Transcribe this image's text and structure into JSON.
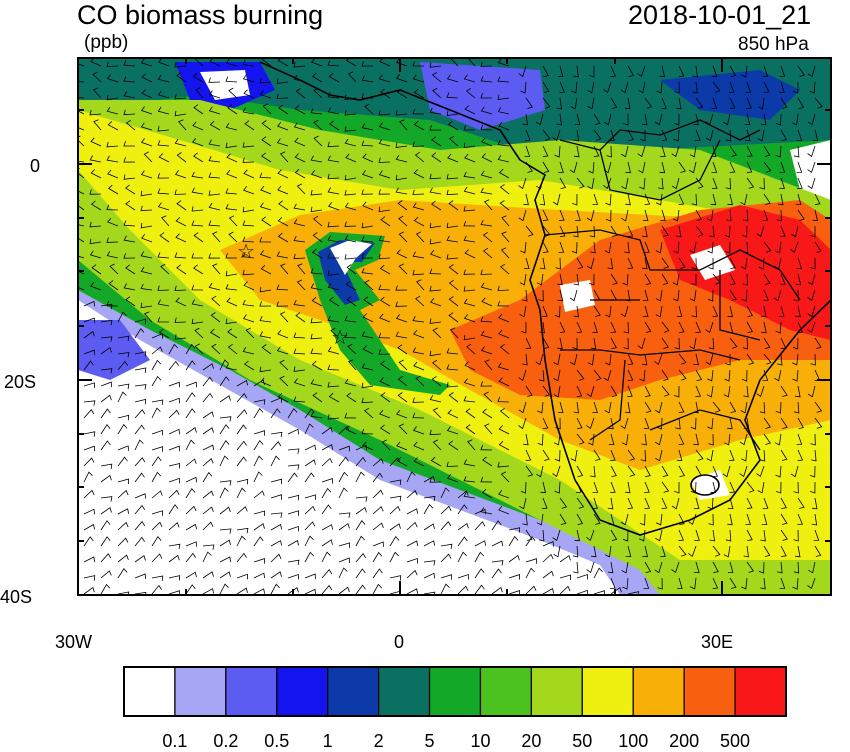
{
  "header": {
    "title": "CO biomass burning",
    "units": "(ppb)",
    "datetime": "2018-10-01_21",
    "level": "850 hPa"
  },
  "axes": {
    "lat_labels": [
      "0",
      "20S",
      "40S"
    ],
    "lon_labels": [
      "30W",
      "0",
      "30E"
    ]
  },
  "colorbar": {
    "colors": [
      "#ffffff",
      "#a6a6f5",
      "#5c5cf2",
      "#1414ee",
      "#0c3aa8",
      "#0a7062",
      "#14a828",
      "#4cc21e",
      "#a4d81c",
      "#f0f010",
      "#f8b008",
      "#f86010",
      "#f81818"
    ],
    "labels": [
      "0.1",
      "0.2",
      "0.5",
      "1",
      "2",
      "5",
      "10",
      "20",
      "50",
      "100",
      "200",
      "500"
    ]
  },
  "markers": {
    "symbol": "☆"
  },
  "colors": {
    "background": "#ffffff",
    "ink": "#000000"
  }
}
